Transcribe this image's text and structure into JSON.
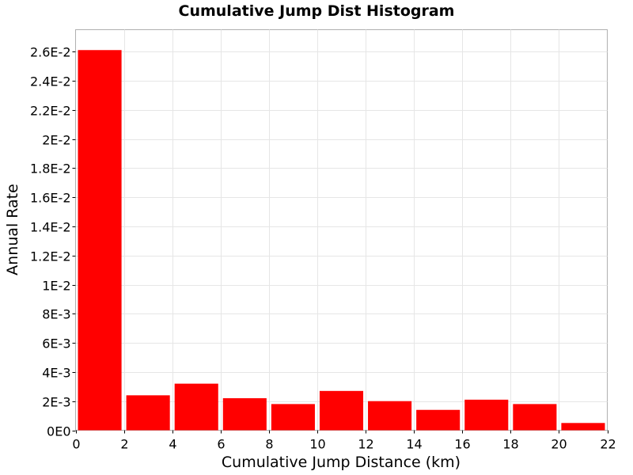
{
  "chart_data": {
    "type": "bar",
    "title": "Cumulative Jump Dist Histogram",
    "xlabel": "Cumulative Jump Distance (km)",
    "ylabel": "Annual Rate",
    "xlim": [
      0,
      22
    ],
    "ylim": [
      0,
      0.0275
    ],
    "x_ticks": [
      0,
      2,
      4,
      6,
      8,
      10,
      12,
      14,
      16,
      18,
      20,
      22
    ],
    "x_tick_labels": [
      "0",
      "2",
      "4",
      "6",
      "8",
      "10",
      "12",
      "14",
      "16",
      "18",
      "20",
      "22"
    ],
    "y_ticks": [
      0,
      0.002,
      0.004,
      0.006,
      0.008,
      0.01,
      0.012,
      0.014,
      0.016,
      0.018,
      0.02,
      0.022,
      0.024,
      0.026
    ],
    "y_tick_labels": [
      "0E0",
      "2E-3",
      "4E-3",
      "6E-3",
      "8E-3",
      "1E-2",
      "1.2E-2",
      "1.4E-2",
      "1.6E-2",
      "1.8E-2",
      "2E-2",
      "2.2E-2",
      "2.4E-2",
      "2.6E-2"
    ],
    "bin_width": 2,
    "bins": [
      {
        "x0": 0,
        "x1": 2,
        "value": 0.0261
      },
      {
        "x0": 2,
        "x1": 4,
        "value": 0.0024
      },
      {
        "x0": 4,
        "x1": 6,
        "value": 0.0032
      },
      {
        "x0": 6,
        "x1": 8,
        "value": 0.0022
      },
      {
        "x0": 8,
        "x1": 10,
        "value": 0.0018
      },
      {
        "x0": 10,
        "x1": 12,
        "value": 0.0027
      },
      {
        "x0": 12,
        "x1": 14,
        "value": 0.002
      },
      {
        "x0": 14,
        "x1": 16,
        "value": 0.0014
      },
      {
        "x0": 16,
        "x1": 18,
        "value": 0.0021
      },
      {
        "x0": 18,
        "x1": 20,
        "value": 0.0018
      },
      {
        "x0": 20,
        "x1": 22,
        "value": 0.0005
      }
    ],
    "bar_color": "#ff0000",
    "grid": true,
    "legend": "none"
  }
}
